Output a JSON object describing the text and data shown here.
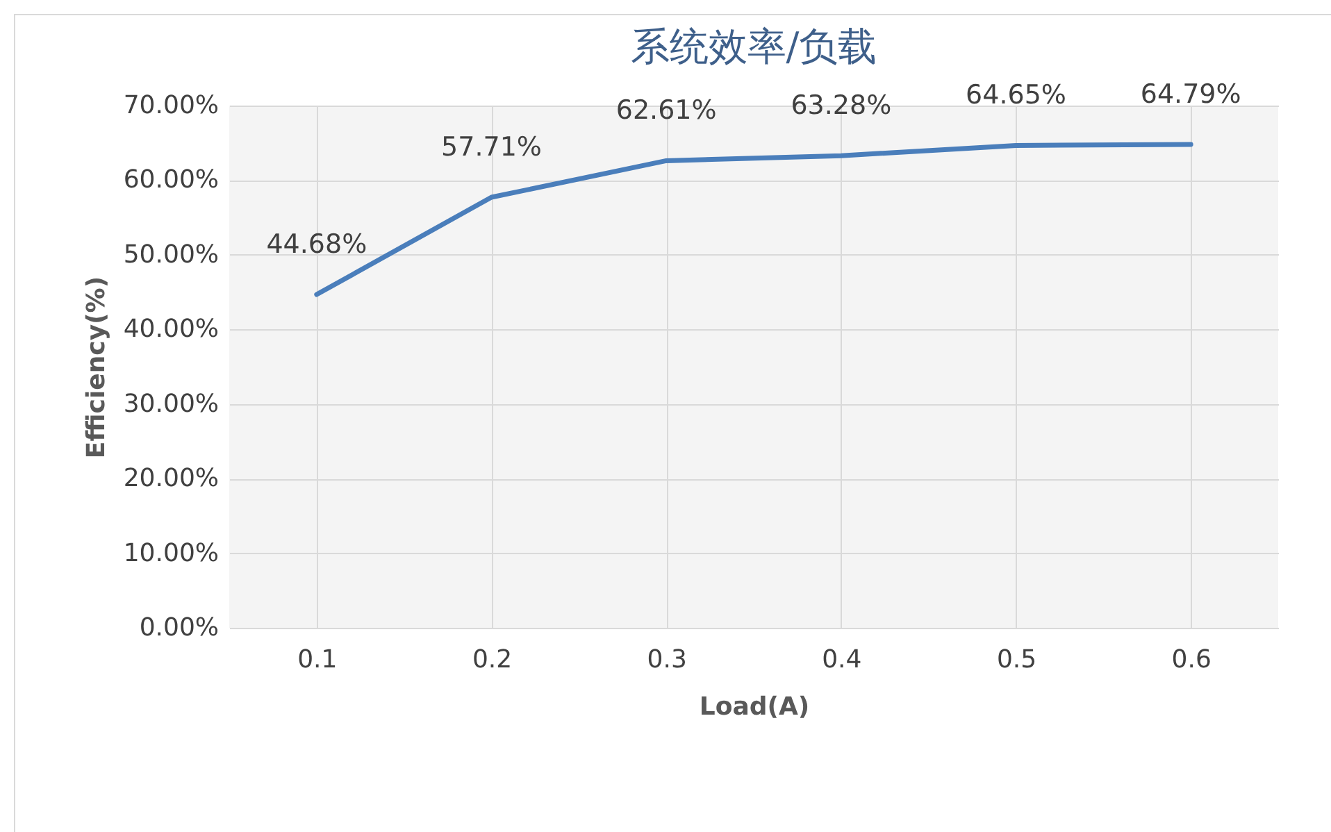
{
  "chart_data": {
    "type": "line",
    "title": "系统效率/负载",
    "xlabel": "Load(A)",
    "ylabel": "Efficiency(%)",
    "categories": [
      "0.1",
      "0.2",
      "0.3",
      "0.4",
      "0.5",
      "0.6"
    ],
    "series": [
      {
        "color": "#4a7ebb",
        "values": [
          44.68,
          57.71,
          62.61,
          63.28,
          64.65,
          64.79
        ],
        "value_labels": [
          "44.68%",
          "57.71%",
          "62.61%",
          "63.28%",
          "64.65%",
          "64.79%"
        ]
      }
    ],
    "ylim": [
      0,
      70
    ],
    "yticks": [
      {
        "value": 0,
        "label": "0.00%"
      },
      {
        "value": 10,
        "label": "10.00%"
      },
      {
        "value": 20,
        "label": "20.00%"
      },
      {
        "value": 30,
        "label": "30.00%"
      },
      {
        "value": 40,
        "label": "40.00%"
      },
      {
        "value": 50,
        "label": "50.00%"
      },
      {
        "value": 60,
        "label": "60.00%"
      },
      {
        "value": 70,
        "label": "70.00%"
      }
    ],
    "grid": true,
    "marker": "none",
    "line_style": "solid"
  }
}
